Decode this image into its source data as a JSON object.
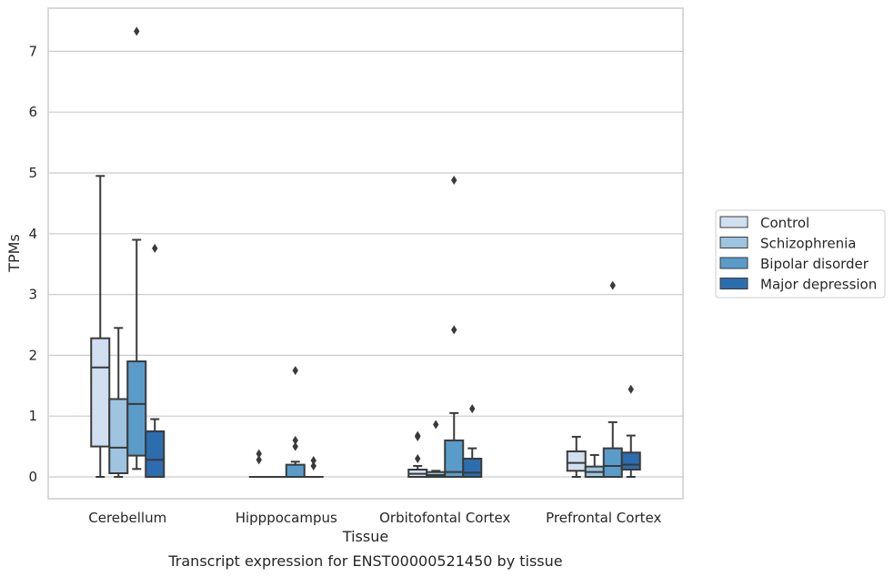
{
  "chart_data": {
    "type": "box",
    "caption": "Transcript expression for ENST00000521450 by tissue",
    "xlabel": "Tissue",
    "ylabel": "TPMs",
    "ylim": [
      -0.35,
      7.7
    ],
    "yticks": [
      0,
      1,
      2,
      3,
      4,
      5,
      6,
      7
    ],
    "grid": "horizontal",
    "legend_position": "right",
    "categories": [
      "Cerebellum",
      "Hipppocampus",
      "Orbitofontal Cortex",
      "Prefrontal Cortex"
    ],
    "series": [
      {
        "name": "Control",
        "color": "#d1e0f0",
        "boxes": [
          {
            "whisker_low": 0.0,
            "q1": 0.5,
            "median": 1.8,
            "q3": 2.28,
            "whisker_high": 4.95,
            "outliers": []
          },
          {
            "whisker_low": 0.0,
            "q1": 0.0,
            "median": 0.0,
            "q3": 0.0,
            "whisker_high": 0.0,
            "outliers": [
              0.38,
              0.28
            ]
          },
          {
            "whisker_low": 0.0,
            "q1": 0.0,
            "median": 0.05,
            "q3": 0.12,
            "whisker_high": 0.18,
            "outliers": [
              0.3,
              0.68,
              0.66
            ]
          },
          {
            "whisker_low": 0.0,
            "q1": 0.1,
            "median": 0.23,
            "q3": 0.42,
            "whisker_high": 0.66,
            "outliers": []
          }
        ]
      },
      {
        "name": "Schizophrenia",
        "color": "#9ec4e0",
        "boxes": [
          {
            "whisker_low": 0.0,
            "q1": 0.06,
            "median": 0.48,
            "q3": 1.28,
            "whisker_high": 2.45,
            "outliers": []
          },
          {
            "whisker_low": 0.0,
            "q1": 0.0,
            "median": 0.0,
            "q3": 0.0,
            "whisker_high": 0.0,
            "outliers": []
          },
          {
            "whisker_low": 0.0,
            "q1": 0.0,
            "median": 0.03,
            "q3": 0.08,
            "whisker_high": 0.1,
            "outliers": [
              0.86
            ]
          },
          {
            "whisker_low": 0.0,
            "q1": 0.0,
            "median": 0.08,
            "q3": 0.17,
            "whisker_high": 0.36,
            "outliers": []
          }
        ]
      },
      {
        "name": "Bipolar disorder",
        "color": "#5a9cc9",
        "boxes": [
          {
            "whisker_low": 0.13,
            "q1": 0.35,
            "median": 1.2,
            "q3": 1.9,
            "whisker_high": 3.9,
            "outliers": [
              7.33
            ]
          },
          {
            "whisker_low": 0.0,
            "q1": 0.0,
            "median": 0.0,
            "q3": 0.2,
            "whisker_high": 0.25,
            "outliers": [
              0.5,
              0.6,
              1.75
            ]
          },
          {
            "whisker_low": 0.0,
            "q1": 0.0,
            "median": 0.08,
            "q3": 0.6,
            "whisker_high": 1.05,
            "outliers": [
              2.42,
              4.88
            ]
          },
          {
            "whisker_low": 0.0,
            "q1": 0.0,
            "median": 0.18,
            "q3": 0.47,
            "whisker_high": 0.9,
            "outliers": [
              3.15
            ]
          }
        ]
      },
      {
        "name": "Major depression",
        "color": "#2c6daf",
        "boxes": [
          {
            "whisker_low": 0.0,
            "q1": 0.0,
            "median": 0.28,
            "q3": 0.75,
            "whisker_high": 0.95,
            "outliers": [
              3.76
            ]
          },
          {
            "whisker_low": 0.0,
            "q1": 0.0,
            "median": 0.0,
            "q3": 0.0,
            "whisker_high": 0.0,
            "outliers": [
              0.27,
              0.18
            ]
          },
          {
            "whisker_low": 0.0,
            "q1": 0.0,
            "median": 0.07,
            "q3": 0.3,
            "whisker_high": 0.47,
            "outliers": [
              1.12
            ]
          },
          {
            "whisker_low": 0.0,
            "q1": 0.12,
            "median": 0.2,
            "q3": 0.4,
            "whisker_high": 0.68,
            "outliers": [
              1.44
            ]
          }
        ]
      }
    ]
  }
}
